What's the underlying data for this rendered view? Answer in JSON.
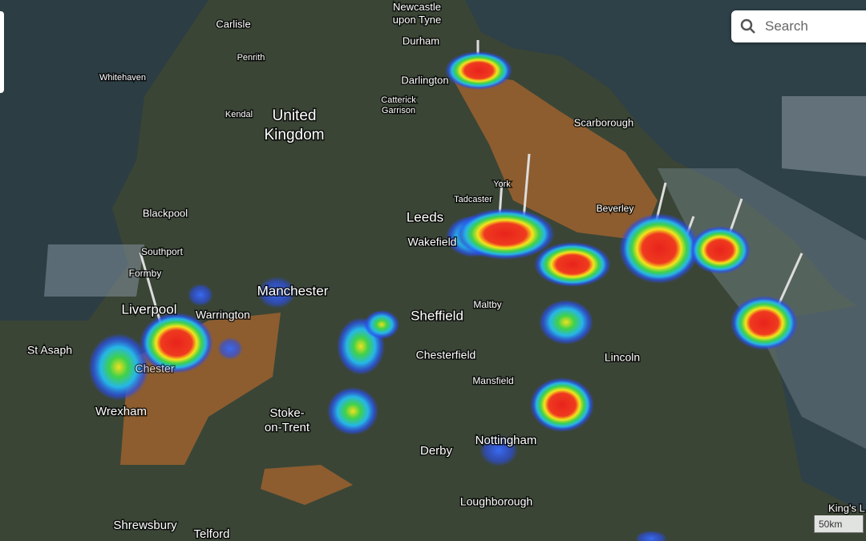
{
  "search": {
    "placeholder": "Search"
  },
  "scale": "50km",
  "labels": [
    [
      "Newcastle",
      "upon Tyne"
    ],
    "Durham",
    "Carlisle",
    "Penrith",
    "Darlington",
    "Whitehaven",
    "Kendal",
    [
      "Catterick",
      "Garrison"
    ],
    [
      "United",
      "Kingdom"
    ],
    "Scarborough",
    "York",
    "Tadcaster",
    "Beverley",
    "Leeds",
    "Wakefield",
    "Blackpool",
    "Southport",
    "Formby",
    "Manchester",
    "Liverpool",
    "Warrington",
    "Maltby",
    "Sheffield",
    "St Asaph",
    "Chesterfield",
    "Lincoln",
    "Chester",
    "Mansfield",
    "Wrexham",
    [
      "Stoke-",
      "on-Trent"
    ],
    "Nottingham",
    "Derby",
    "Loughborough",
    "Shrewsbury",
    "Telford",
    "King's L"
  ]
}
